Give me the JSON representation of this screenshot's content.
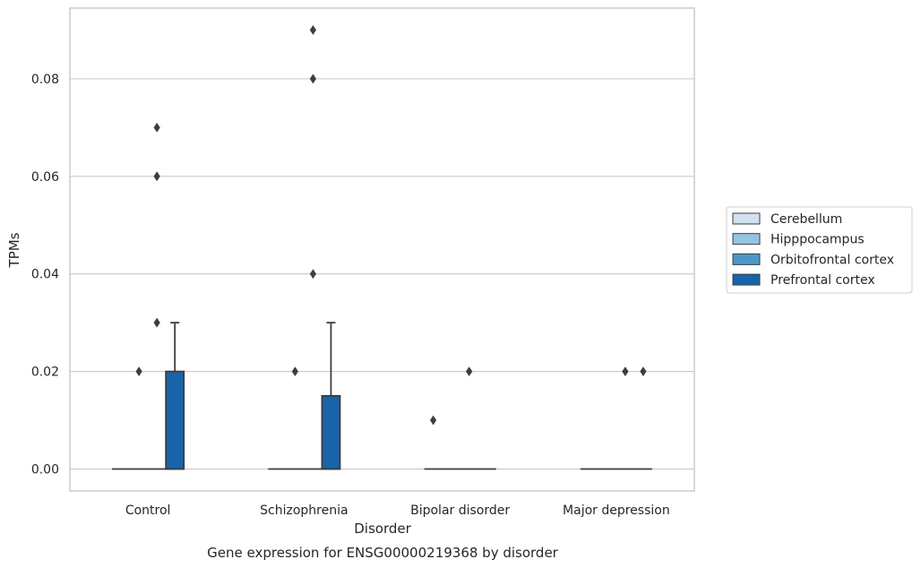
{
  "chart_data": {
    "type": "box",
    "xlabel": "Disorder",
    "ylabel": "TPMs",
    "caption": "Gene expression for ENSG00000219368 by disorder",
    "categories": [
      "Control",
      "Schizophrenia",
      "Bipolar disorder",
      "Major depression"
    ],
    "ylim": [
      -0.0045,
      0.0945
    ],
    "yticks": [
      0.0,
      0.02,
      0.04,
      0.06,
      0.08
    ],
    "ytick_labels": [
      "0.00",
      "0.02",
      "0.04",
      "0.06",
      "0.08"
    ],
    "grid": "horizontal",
    "legend_position": "right",
    "series": [
      {
        "name": "Cerebellum",
        "color": "#d0e1f2",
        "boxes": [
          {
            "q1": 0,
            "median": 0,
            "q3": 0,
            "whisker_low": 0,
            "whisker_high": 0,
            "outliers": []
          },
          {
            "q1": 0,
            "median": 0,
            "q3": 0,
            "whisker_low": 0,
            "whisker_high": 0,
            "outliers": []
          },
          {
            "q1": 0,
            "median": 0,
            "q3": 0,
            "whisker_low": 0,
            "whisker_high": 0,
            "outliers": [
              0.01
            ]
          },
          {
            "q1": 0,
            "median": 0,
            "q3": 0,
            "whisker_low": 0,
            "whisker_high": 0,
            "outliers": []
          }
        ]
      },
      {
        "name": "Hipppocampus",
        "color": "#94c4df",
        "boxes": [
          {
            "q1": 0,
            "median": 0,
            "q3": 0,
            "whisker_low": 0,
            "whisker_high": 0,
            "outliers": [
              0.02
            ]
          },
          {
            "q1": 0,
            "median": 0,
            "q3": 0,
            "whisker_low": 0,
            "whisker_high": 0,
            "outliers": [
              0.02
            ]
          },
          {
            "q1": 0,
            "median": 0,
            "q3": 0,
            "whisker_low": 0,
            "whisker_high": 0,
            "outliers": []
          },
          {
            "q1": 0,
            "median": 0,
            "q3": 0,
            "whisker_low": 0,
            "whisker_high": 0,
            "outliers": []
          }
        ]
      },
      {
        "name": "Orbitofrontal cortex",
        "color": "#4a98c9",
        "boxes": [
          {
            "q1": 0,
            "median": 0,
            "q3": 0,
            "whisker_low": 0,
            "whisker_high": 0,
            "outliers": [
              0.03,
              0.06,
              0.07
            ]
          },
          {
            "q1": 0,
            "median": 0,
            "q3": 0,
            "whisker_low": 0,
            "whisker_high": 0,
            "outliers": [
              0.04,
              0.08,
              0.09
            ]
          },
          {
            "q1": 0,
            "median": 0,
            "q3": 0,
            "whisker_low": 0,
            "whisker_high": 0,
            "outliers": [
              0.02
            ]
          },
          {
            "q1": 0,
            "median": 0,
            "q3": 0,
            "whisker_low": 0,
            "whisker_high": 0,
            "outliers": [
              0.02
            ]
          }
        ]
      },
      {
        "name": "Prefrontal cortex",
        "color": "#1764ab",
        "boxes": [
          {
            "q1": 0,
            "median": 0,
            "q3": 0.02,
            "whisker_low": 0,
            "whisker_high": 0.03,
            "outliers": []
          },
          {
            "q1": 0,
            "median": 0,
            "q3": 0.015,
            "whisker_low": 0,
            "whisker_high": 0.03,
            "outliers": []
          },
          {
            "q1": 0,
            "median": 0,
            "q3": 0,
            "whisker_low": 0,
            "whisker_high": 0,
            "outliers": []
          },
          {
            "q1": 0,
            "median": 0,
            "q3": 0,
            "whisker_low": 0,
            "whisker_high": 0,
            "outliers": [
              0.02
            ]
          }
        ]
      }
    ]
  }
}
